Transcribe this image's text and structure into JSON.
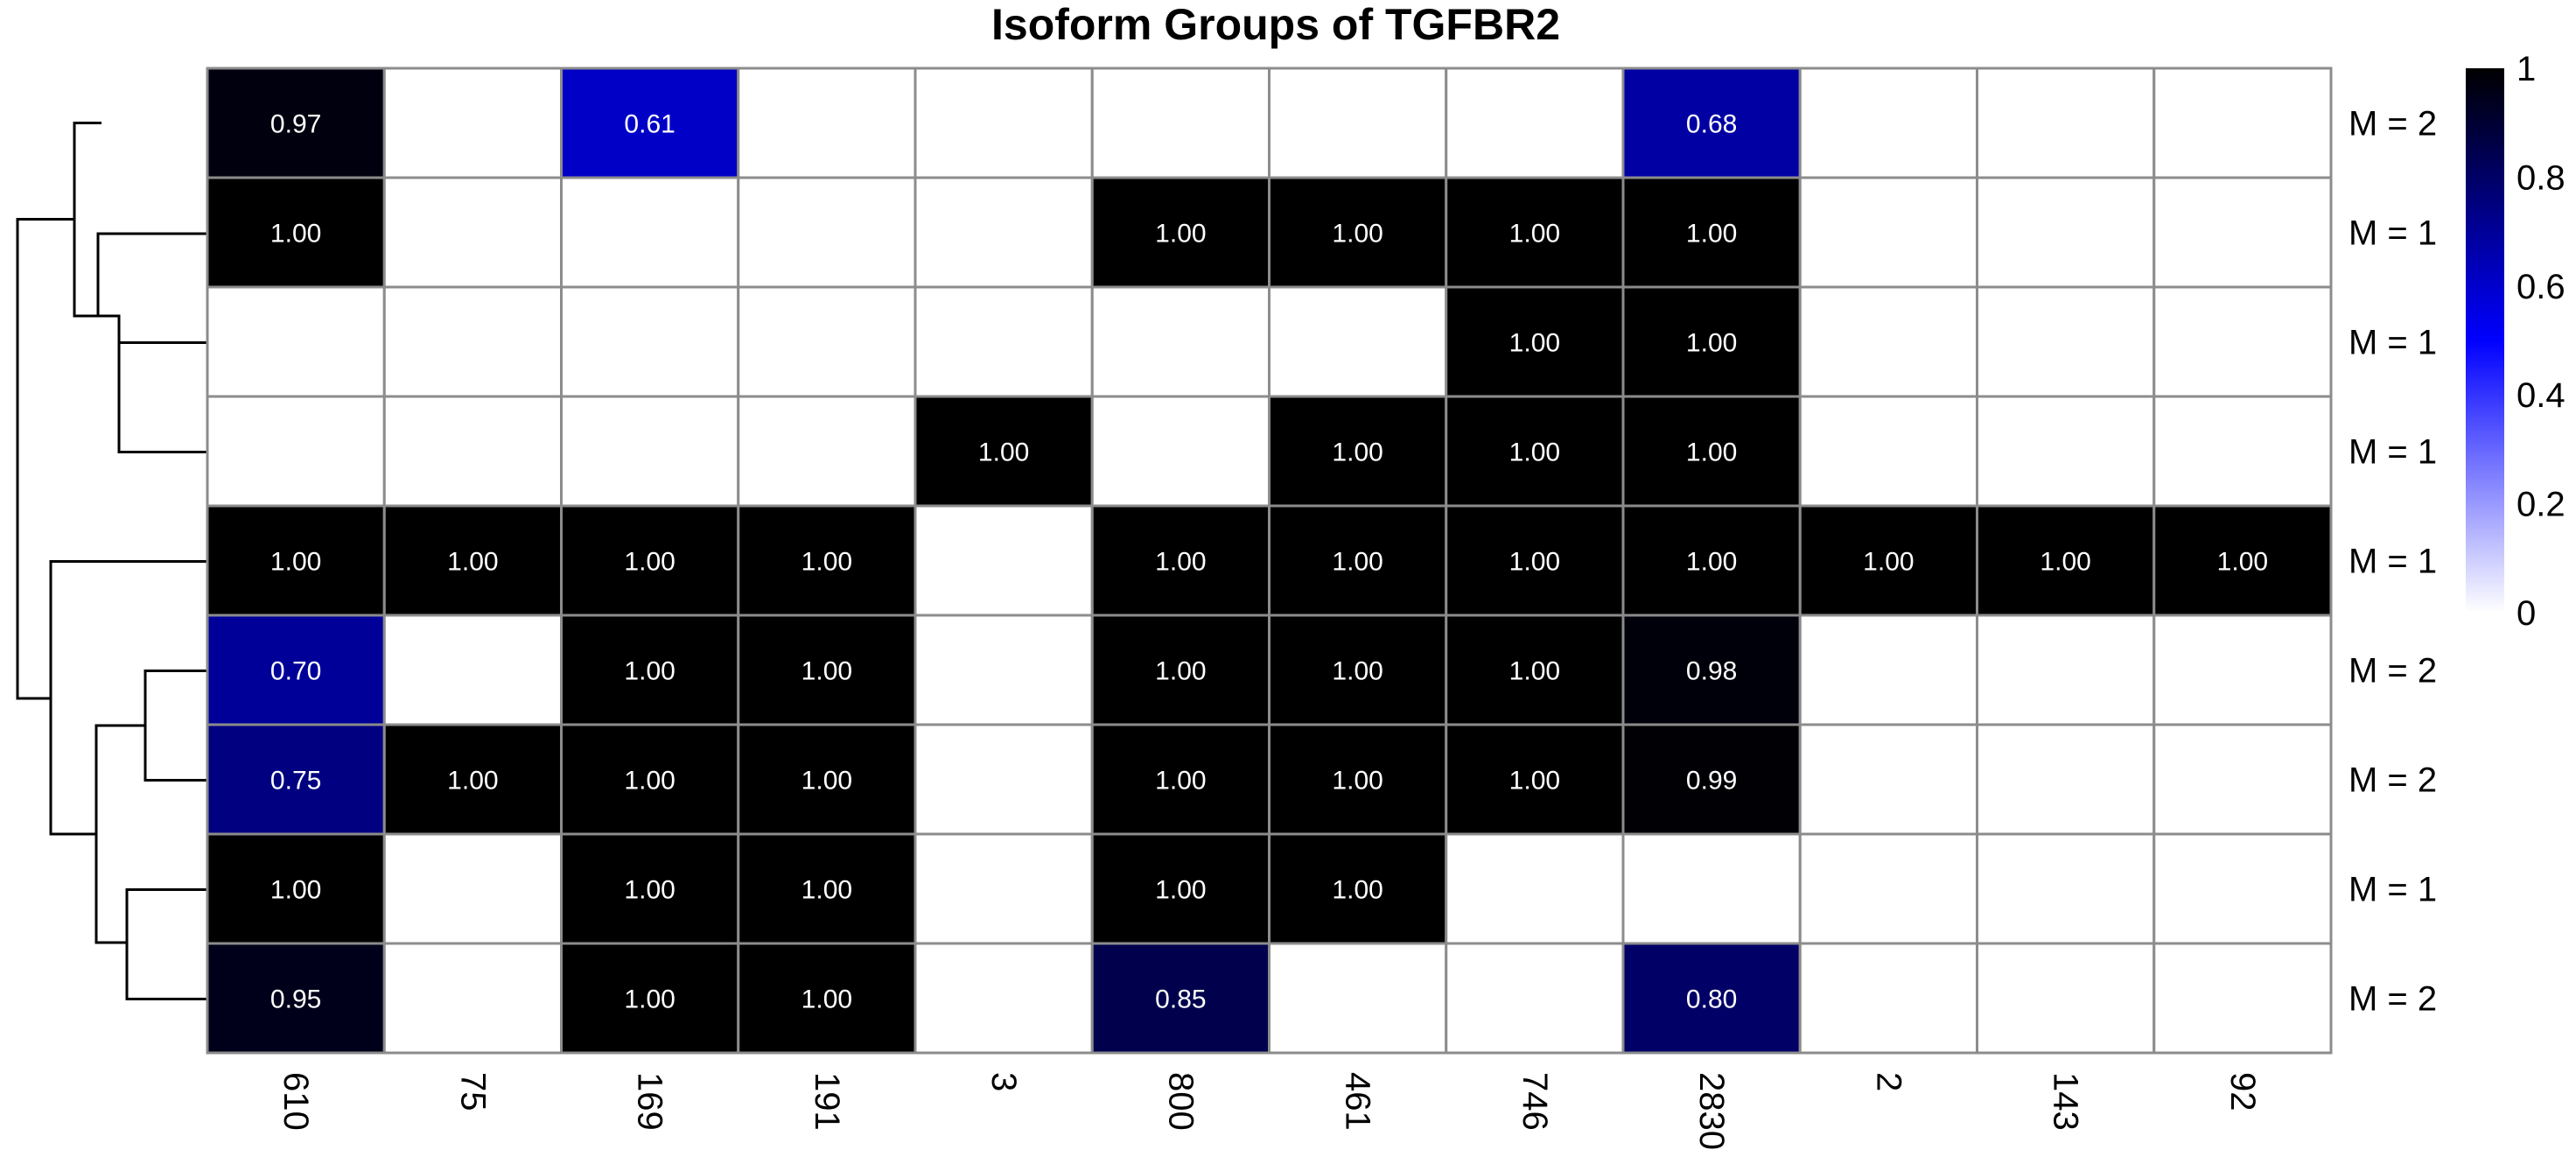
{
  "chart_data": {
    "type": "heatmap",
    "title": "Isoform Groups of TGFBR2",
    "columns": [
      "610",
      "75",
      "169",
      "191",
      "3",
      "800",
      "461",
      "746",
      "2830",
      "2",
      "143",
      "92"
    ],
    "rows": [
      "M = 2",
      "M = 1",
      "M = 1",
      "M = 1",
      "M = 1",
      "M = 2",
      "M = 2",
      "M = 1",
      "M = 2"
    ],
    "values": [
      [
        0.97,
        null,
        0.61,
        null,
        null,
        null,
        null,
        null,
        0.68,
        null,
        null,
        null
      ],
      [
        1.0,
        null,
        null,
        null,
        null,
        1.0,
        1.0,
        1.0,
        1.0,
        null,
        null,
        null
      ],
      [
        null,
        null,
        null,
        null,
        null,
        null,
        null,
        1.0,
        1.0,
        null,
        null,
        null
      ],
      [
        null,
        null,
        null,
        null,
        1.0,
        null,
        1.0,
        1.0,
        1.0,
        null,
        null,
        null
      ],
      [
        1.0,
        1.0,
        1.0,
        1.0,
        null,
        1.0,
        1.0,
        1.0,
        1.0,
        1.0,
        1.0,
        1.0
      ],
      [
        0.7,
        null,
        1.0,
        1.0,
        null,
        1.0,
        1.0,
        1.0,
        0.98,
        null,
        null,
        null
      ],
      [
        0.75,
        1.0,
        1.0,
        1.0,
        null,
        1.0,
        1.0,
        1.0,
        0.99,
        null,
        null,
        null
      ],
      [
        1.0,
        null,
        1.0,
        1.0,
        null,
        1.0,
        1.0,
        null,
        null,
        null,
        null,
        null
      ],
      [
        0.95,
        null,
        1.0,
        1.0,
        null,
        0.85,
        null,
        null,
        0.8,
        null,
        null,
        null
      ]
    ],
    "color_scale": {
      "range": [
        0,
        1
      ],
      "stops": [
        "#ffffff",
        "#0000ff",
        "#000000"
      ],
      "ticks": [
        "0",
        "0.2",
        "0.4",
        "0.6",
        "0.8",
        "1"
      ]
    },
    "dendrogram": "row clustering tree on left"
  }
}
